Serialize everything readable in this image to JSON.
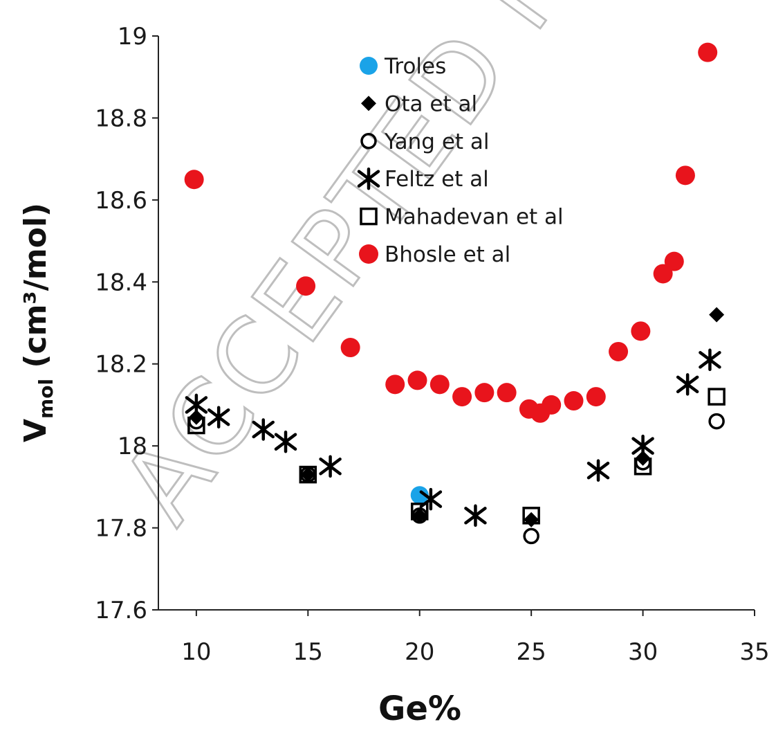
{
  "watermark": "ACCEPTED MA",
  "chart_data": {
    "type": "scatter",
    "xlabel": "Ge%",
    "ylabel_main": "V",
    "ylabel_sub": "mol",
    "ylabel_rest": " (cm³/mol)",
    "xlim": [
      8.3,
      35
    ],
    "ylim": [
      17.6,
      19
    ],
    "xticks": [
      10,
      15,
      20,
      25,
      30,
      35
    ],
    "yticks": [
      "17.6",
      "17.8",
      "18",
      "18.2",
      "18.4",
      "18.6",
      "18.8",
      "19"
    ],
    "grid": false,
    "legend_position": "top-center",
    "series": [
      {
        "name": "Troles",
        "marker": "filled-circle",
        "color": "#1aa3e8",
        "x": [
          20
        ],
        "y": [
          17.88
        ]
      },
      {
        "name": "Ota et al",
        "marker": "filled-diamond",
        "color": "#000000",
        "x": [
          10,
          15,
          20,
          25,
          30,
          33.3
        ],
        "y": [
          18.07,
          17.93,
          17.83,
          17.82,
          17.97,
          18.32
        ]
      },
      {
        "name": "Yang et al",
        "marker": "open-circle",
        "color": "#000000",
        "x": [
          10,
          15,
          20,
          25,
          30,
          33.3
        ],
        "y": [
          18.06,
          17.93,
          17.83,
          17.78,
          17.96,
          18.06
        ]
      },
      {
        "name": "Feltz et al",
        "marker": "asterisk",
        "color": "#000000",
        "x": [
          10,
          11,
          13,
          14,
          16,
          20.5,
          22.5,
          28,
          30,
          32,
          33
        ],
        "y": [
          18.1,
          18.07,
          18.04,
          18.01,
          17.95,
          17.87,
          17.83,
          17.94,
          18.0,
          18.15,
          18.21
        ]
      },
      {
        "name": "Mahadevan et al",
        "marker": "open-square",
        "color": "#000000",
        "x": [
          10,
          15,
          20,
          25,
          30,
          33.3
        ],
        "y": [
          18.05,
          17.93,
          17.84,
          17.83,
          17.95,
          18.12
        ]
      },
      {
        "name": "Bhosle et al",
        "marker": "filled-circle",
        "color": "#e8141c",
        "x": [
          9.9,
          14.9,
          16.9,
          18.9,
          19.9,
          20.9,
          21.9,
          22.9,
          23.9,
          24.9,
          25.4,
          25.9,
          26.9,
          27.9,
          28.9,
          29.9,
          30.9,
          31.4,
          31.9,
          32.9
        ],
        "y": [
          18.65,
          18.39,
          18.24,
          18.15,
          18.16,
          18.15,
          18.12,
          18.13,
          18.13,
          18.09,
          18.08,
          18.1,
          18.11,
          18.12,
          18.23,
          18.28,
          18.42,
          18.45,
          18.66,
          18.96
        ]
      }
    ]
  }
}
